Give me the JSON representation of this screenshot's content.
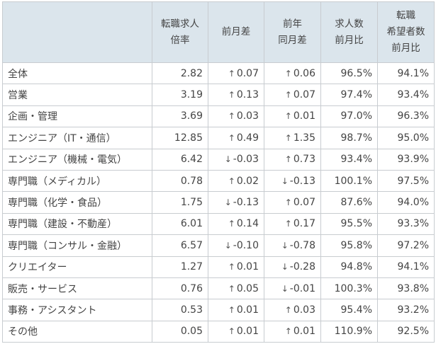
{
  "table": {
    "headers": [
      "",
      "転職求人\n倍率",
      "前月差",
      "前年\n同月差",
      "求人数\n前月比",
      "転職\n希望者数\n前月比"
    ],
    "rows": [
      {
        "label": "全体",
        "ratio": "2.82",
        "mom_dir": "up",
        "mom": "0.07",
        "yoy_dir": "up",
        "yoy": "0.06",
        "jobs_mom": "96.5%",
        "seekers_mom": "94.1%"
      },
      {
        "label": "営業",
        "ratio": "3.19",
        "mom_dir": "up",
        "mom": "0.13",
        "yoy_dir": "up",
        "yoy": "0.07",
        "jobs_mom": "97.4%",
        "seekers_mom": "93.4%"
      },
      {
        "label": "企画・管理",
        "ratio": "3.69",
        "mom_dir": "up",
        "mom": "0.03",
        "yoy_dir": "up",
        "yoy": "0.01",
        "jobs_mom": "97.0%",
        "seekers_mom": "96.3%"
      },
      {
        "label": "エンジニア（IT・通信）",
        "ratio": "12.85",
        "mom_dir": "up",
        "mom": "0.49",
        "yoy_dir": "up",
        "yoy": "1.35",
        "jobs_mom": "98.7%",
        "seekers_mom": "95.0%"
      },
      {
        "label": "エンジニア（機械・電気）",
        "ratio": "6.42",
        "mom_dir": "down",
        "mom": "-0.03",
        "yoy_dir": "up",
        "yoy": "0.73",
        "jobs_mom": "93.4%",
        "seekers_mom": "93.9%"
      },
      {
        "label": "専門職（メディカル）",
        "ratio": "0.78",
        "mom_dir": "up",
        "mom": "0.02",
        "yoy_dir": "down",
        "yoy": "-0.13",
        "jobs_mom": "100.1%",
        "seekers_mom": "97.5%"
      },
      {
        "label": "専門職（化学・食品）",
        "ratio": "1.75",
        "mom_dir": "down",
        "mom": "-0.13",
        "yoy_dir": "up",
        "yoy": "0.07",
        "jobs_mom": "87.6%",
        "seekers_mom": "94.0%"
      },
      {
        "label": "専門職（建設・不動産）",
        "ratio": "6.01",
        "mom_dir": "up",
        "mom": "0.14",
        "yoy_dir": "up",
        "yoy": "0.17",
        "jobs_mom": "95.5%",
        "seekers_mom": "93.3%"
      },
      {
        "label": "専門職（コンサル・金融）",
        "ratio": "6.57",
        "mom_dir": "down",
        "mom": "-0.10",
        "yoy_dir": "down",
        "yoy": "-0.78",
        "jobs_mom": "95.8%",
        "seekers_mom": "97.2%"
      },
      {
        "label": "クリエイター",
        "ratio": "1.27",
        "mom_dir": "up",
        "mom": "0.01",
        "yoy_dir": "down",
        "yoy": "-0.28",
        "jobs_mom": "94.8%",
        "seekers_mom": "94.1%"
      },
      {
        "label": "販売・サービス",
        "ratio": "0.76",
        "mom_dir": "up",
        "mom": "0.05",
        "yoy_dir": "down",
        "yoy": "-0.01",
        "jobs_mom": "100.3%",
        "seekers_mom": "93.8%"
      },
      {
        "label": "事務・アシスタント",
        "ratio": "0.53",
        "mom_dir": "up",
        "mom": "0.01",
        "yoy_dir": "up",
        "yoy": "0.03",
        "jobs_mom": "95.4%",
        "seekers_mom": "93.2%"
      },
      {
        "label": "その他",
        "ratio": "0.05",
        "mom_dir": "up",
        "mom": "0.01",
        "yoy_dir": "up",
        "yoy": "0.01",
        "jobs_mom": "110.9%",
        "seekers_mom": "92.5%"
      }
    ]
  },
  "icons": {
    "up": "↑",
    "down": "↓"
  },
  "colors": {
    "header_bg": "#dbe5ec",
    "border": "#c8ccd0",
    "text": "#444444"
  }
}
